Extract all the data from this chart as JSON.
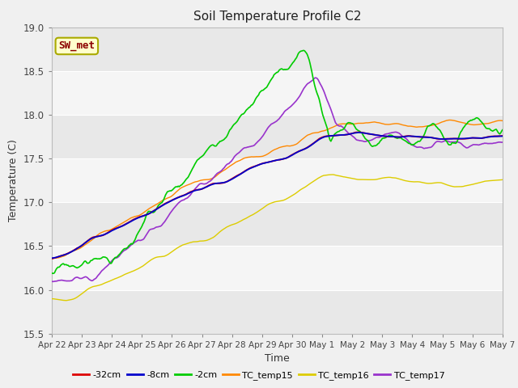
{
  "title": "Soil Temperature Profile C2",
  "xlabel": "Time",
  "ylabel": "Temperature (C)",
  "ylim": [
    15.5,
    19.0
  ],
  "fig_facecolor": "#f0f0f0",
  "plot_bg_color": "#ffffff",
  "band_color_dark": "#e8e8e8",
  "band_color_light": "#f5f5f5",
  "annotation_label": "SW_met",
  "annotation_color": "#8b0000",
  "annotation_bg": "#ffffcc",
  "annotation_border": "#aaaa00",
  "legend_entries": [
    "-32cm",
    "-8cm",
    "-2cm",
    "TC_temp15",
    "TC_temp16",
    "TC_temp17"
  ],
  "legend_colors": [
    "#dd0000",
    "#0000cc",
    "#00cc00",
    "#ff8800",
    "#ddcc00",
    "#9933cc"
  ],
  "series_colors": {
    "d32cm": "#dd0000",
    "d8cm": "#0000cc",
    "d2cm": "#00cc00",
    "TC15": "#ff8800",
    "TC16": "#ddcc00",
    "TC17": "#9933cc"
  },
  "n_points": 500,
  "tick_labels": [
    "Apr 22",
    "Apr 23",
    "Apr 24",
    "Apr 25",
    "Apr 26",
    "Apr 27",
    "Apr 28",
    "Apr 29",
    "Apr 30",
    "May 1",
    "May 2",
    "May 3",
    "May 4",
    "May 5",
    "May 6",
    "May 7"
  ],
  "tick_positions": [
    0,
    1,
    2,
    3,
    4,
    5,
    6,
    7,
    8,
    9,
    10,
    11,
    12,
    13,
    14,
    15
  ]
}
